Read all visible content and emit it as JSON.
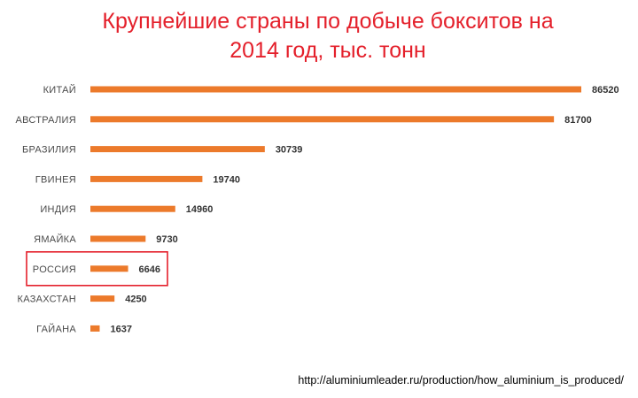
{
  "chart_data": {
    "type": "bar",
    "orientation": "horizontal",
    "title_line1": "Крупнейшие страны по добыче бокситов на",
    "title_line2": "2014 год, тыс. тонн",
    "categories": [
      "КИТАЙ",
      "АВСТРАЛИЯ",
      "БРАЗИЛИЯ",
      "ГВИНЕЯ",
      "ИНДИЯ",
      "ЯМАЙКА",
      "РОССИЯ",
      "КАЗАХСТАН",
      "ГАЙАНА"
    ],
    "values": [
      86520,
      81700,
      30739,
      19740,
      14960,
      9730,
      6646,
      4250,
      1637
    ],
    "value_labels": [
      "86520",
      "81700",
      "30739",
      "19740",
      "14960",
      "9730",
      "6646",
      "4250",
      "1637"
    ],
    "highlighted_category": "РОССИЯ",
    "xlim": [
      0,
      86520
    ],
    "grid": false,
    "legend": "none"
  },
  "colors": {
    "bar": "#ec7a2b",
    "title": "#e4202b",
    "highlight_box": "#e4202b"
  },
  "source": "http://aluminiumleader.ru/production/how_aluminium_is_produced/"
}
